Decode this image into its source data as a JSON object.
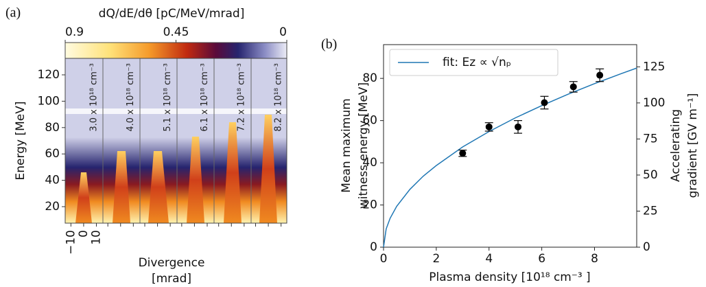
{
  "chart_data": [
    {
      "type": "image",
      "panel_label": "(a)",
      "colorbar_label": "dQ/dE/dθ [pC/MeV/mrad]",
      "clim": [
        0.9,
        0.0
      ],
      "cticks": [
        0.9,
        0.45,
        0.0
      ],
      "ylabel": "Energy [MeV]",
      "ylim": [
        7.5,
        132.5
      ],
      "yticks": [
        20,
        40,
        60,
        80,
        100,
        120
      ],
      "xlabel": [
        "Divergence",
        "[mrad]"
      ],
      "xlim": [
        -14.5,
        14.5
      ],
      "xticks": [
        {
          "value": -10,
          "label": "−10"
        },
        0,
        10
      ],
      "annotations": [
        "3.0 x 10¹⁸ cm⁻³",
        "4.0 x 10¹⁸ cm⁻³",
        "5.1 x 10¹⁸ cm⁻³",
        "6.1 x 10¹⁸ cm⁻³",
        "7.2 x 10¹⁸ cm⁻³",
        "8.2 x 10¹⁸ cm⁻³"
      ]
    },
    {
      "type": "scatter",
      "panel_label": "(b)",
      "xlabel": "Plasma density [10¹⁸ cm⁻³ ]",
      "ylabel": [
        "Mean maximum",
        "witness energy [MeV]"
      ],
      "y2label": [
        "Accelerating",
        "gradient [GV m⁻¹]"
      ],
      "xlim": [
        0,
        9.6
      ],
      "xticks": [
        0,
        2,
        4,
        6,
        8
      ],
      "ylim": [
        0,
        96
      ],
      "yticks": [
        0,
        20,
        40,
        60,
        80
      ],
      "y2lim": [
        0,
        140.4
      ],
      "y2ticks": [
        0,
        25,
        50,
        75,
        100,
        125
      ],
      "x": [
        3.0,
        4.0,
        5.1,
        6.1,
        7.2,
        8.2
      ],
      "values": [
        44.5,
        57,
        57,
        68.5,
        76,
        81.5
      ],
      "errors": [
        1.5,
        2,
        3,
        3,
        2.5,
        3
      ],
      "color": "#000000",
      "legend": "upper left",
      "fit": {
        "name": "fit: Ez ∝ √nₚ",
        "color": "#1f77b4",
        "x": [
          0,
          0.1,
          0.25,
          0.5,
          1,
          1.5,
          2,
          3,
          4,
          5,
          6,
          7,
          8,
          9,
          9.6
        ],
        "values": [
          0,
          8.66,
          13.7,
          19.4,
          27.4,
          33.6,
          38.7,
          47.5,
          54.8,
          61.3,
          67.1,
          72.5,
          77.5,
          82.2,
          84.9
        ]
      }
    }
  ]
}
